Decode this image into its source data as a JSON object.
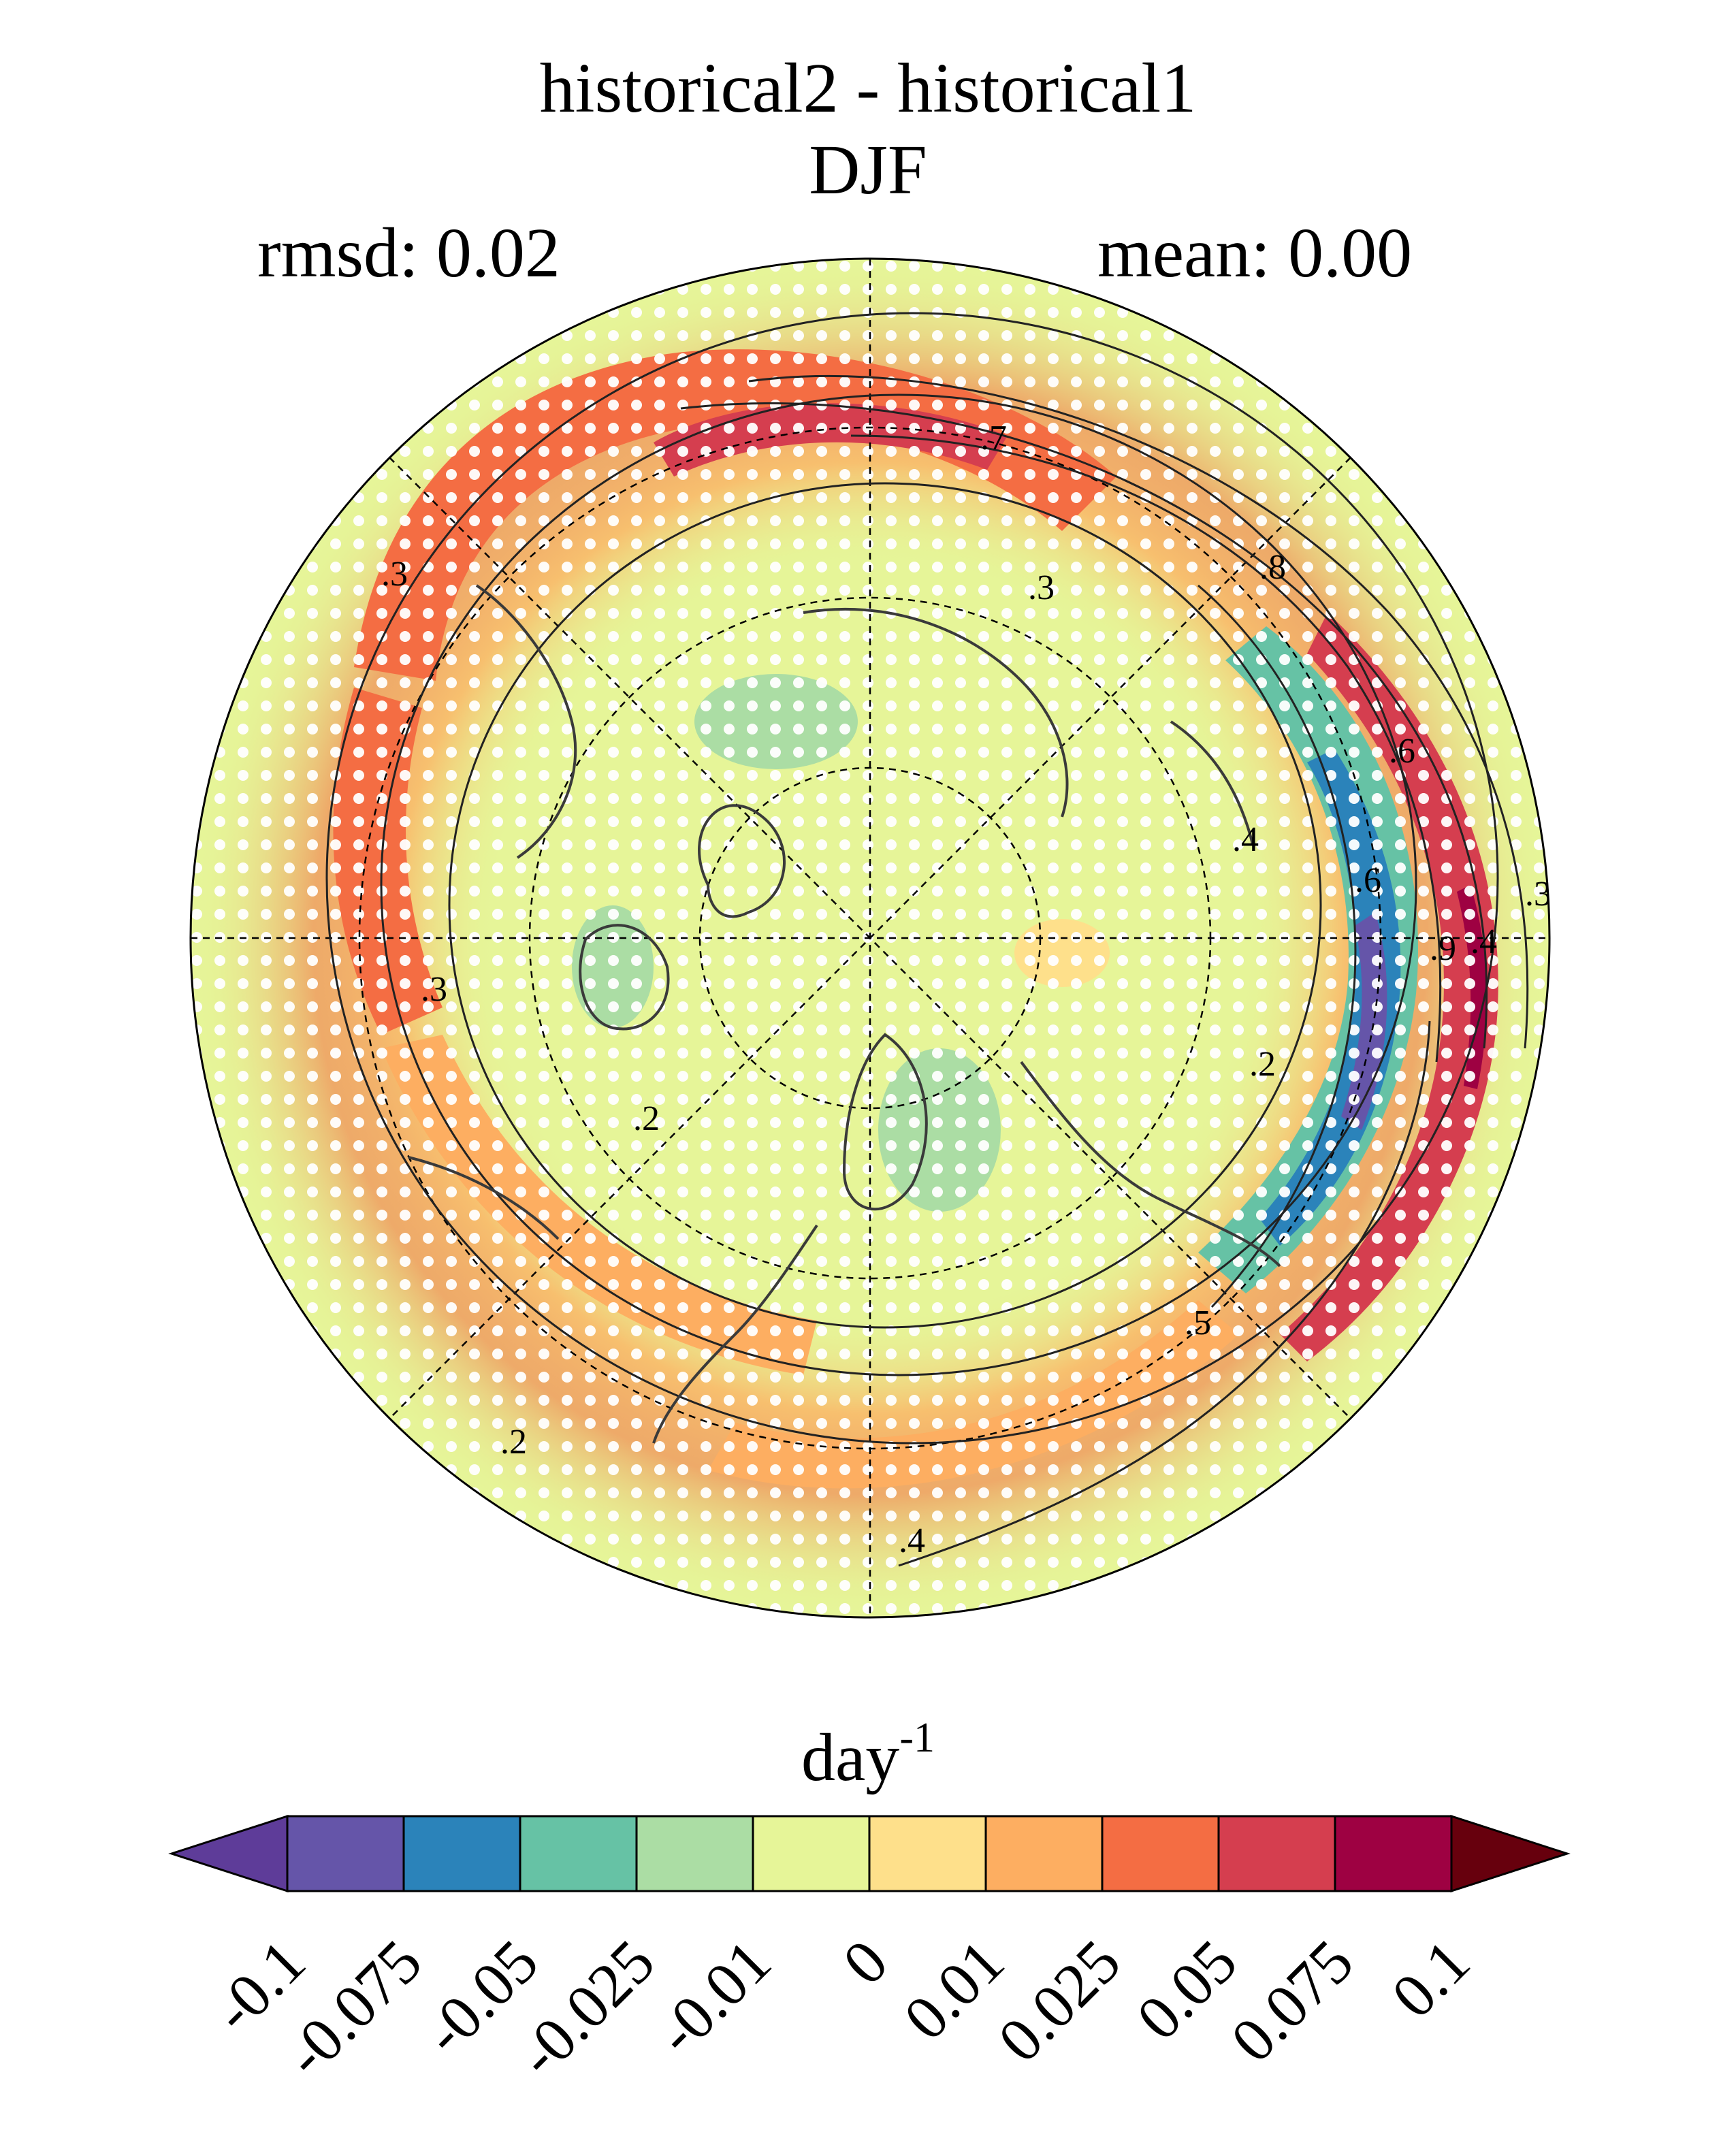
{
  "header": {
    "title_line1": "historical2 - historical1",
    "title_line2": "DJF",
    "rmsd": "rmsd: 0.02",
    "mean": "mean: 0.00"
  },
  "map": {
    "projection": "north-polar-stereographic",
    "field": "difference field (filled) with stippling and climatology contours",
    "contour_labels": [
      ".3",
      ".3",
      ".3",
      ".2",
      ".2",
      ".2",
      ".4",
      ".4",
      ".5",
      ".6",
      ".6",
      ".7",
      ".8",
      ".9",
      ".3",
      ".4"
    ]
  },
  "colorbar": {
    "unit_base": "day",
    "unit_exp": "-1",
    "levels": [
      "-0.1",
      "-0.075",
      "-0.05",
      "-0.025",
      "-0.01",
      "0",
      "0.01",
      "0.025",
      "0.05",
      "0.075",
      "0.1"
    ],
    "colors": [
      "#5e3c99",
      "#6555a9",
      "#2b83ba",
      "#66c2a5",
      "#abdda4",
      "#e6f598",
      "#fee08b",
      "#fdae61",
      "#f46d43",
      "#d53e4f",
      "#9e0142",
      "#67000d"
    ]
  },
  "chart_data": {
    "type": "heatmap",
    "title": "historical2 - historical1",
    "subtitle": "DJF",
    "colorbar_label": "day^-1",
    "bounds": [
      -0.1,
      -0.075,
      -0.05,
      -0.025,
      -0.01,
      0,
      0.01,
      0.025,
      0.05,
      0.075,
      0.1
    ],
    "extend": "both"
  }
}
